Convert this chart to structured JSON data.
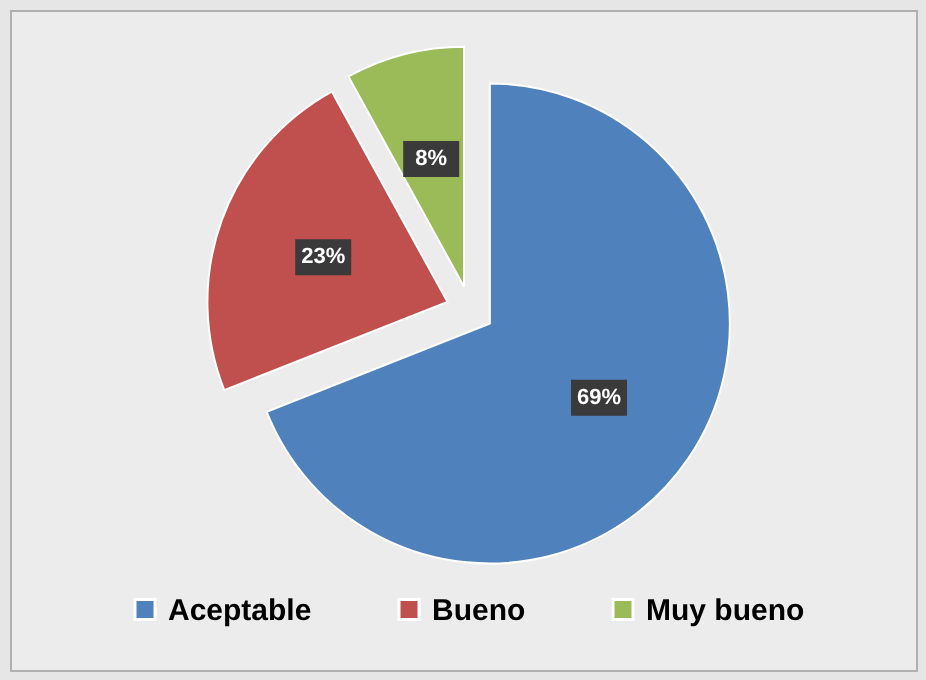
{
  "chart_data": {
    "type": "pie",
    "categories": [
      "Aceptable",
      "Bueno",
      "Muy bueno"
    ],
    "values": [
      69,
      23,
      8
    ],
    "colors": [
      "#4f81bd",
      "#c0504d",
      "#9bbb59"
    ],
    "value_labels": [
      "69%",
      "23%",
      "8%"
    ],
    "legend": "bottom"
  }
}
